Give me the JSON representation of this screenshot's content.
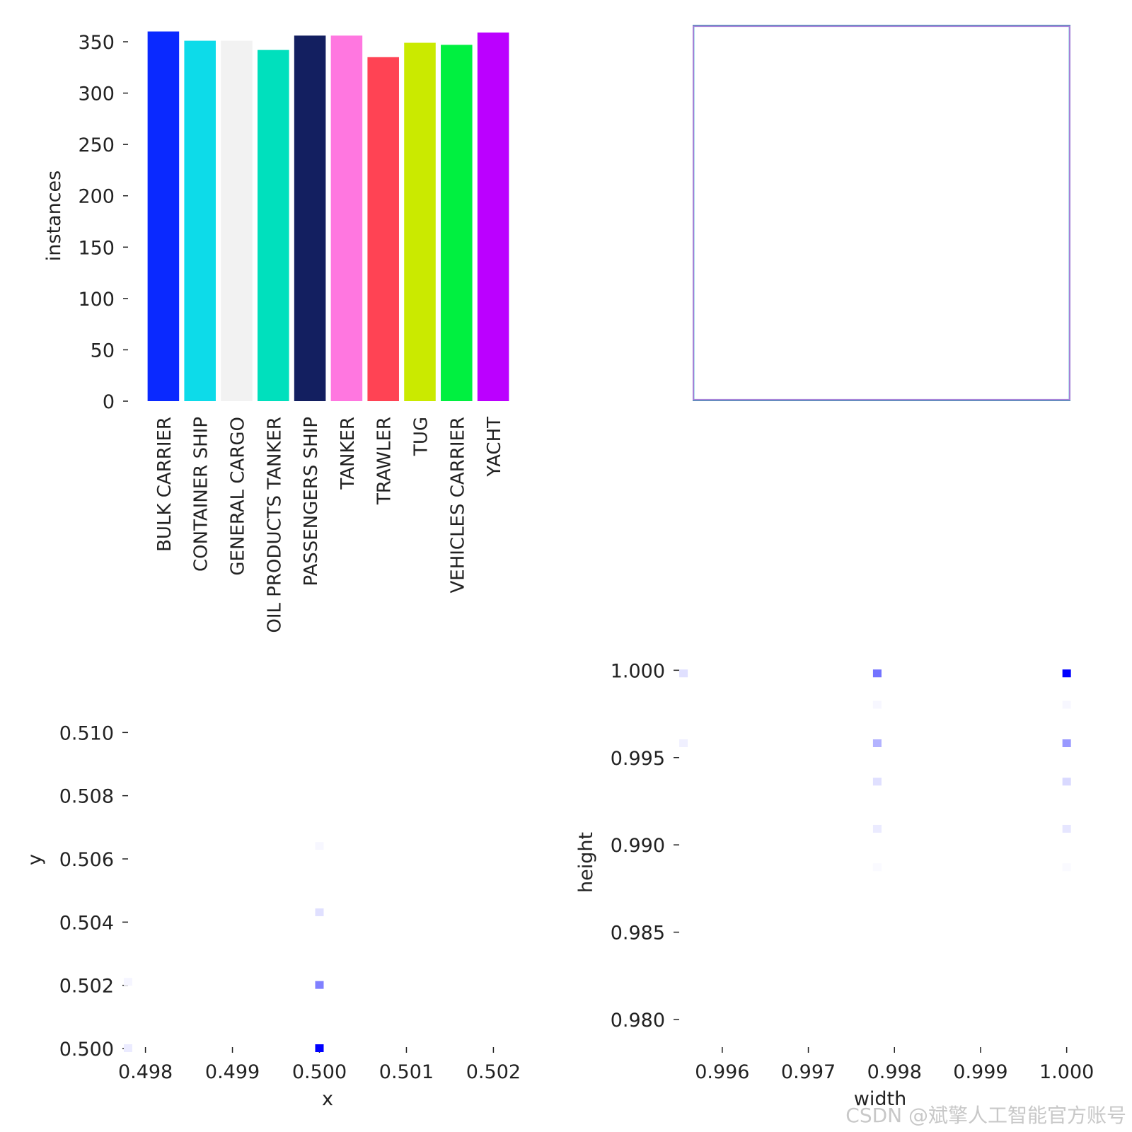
{
  "watermark": "CSDN @斌擎人工智能官方账号",
  "chart_data": [
    {
      "type": "bar",
      "ylabel": "instances",
      "ylim": [
        0,
        370
      ],
      "yticks": [
        "0",
        "50",
        "100",
        "150",
        "200",
        "250",
        "300",
        "350"
      ],
      "categories": [
        "BULK CARRIER",
        "CONTAINER SHIP",
        "GENERAL CARGO",
        "OIL PRODUCTS TANKER",
        "PASSENGERS SHIP",
        "TANKER",
        "TRAWLER",
        "TUG",
        "VEHICLES CARRIER",
        "YACHT"
      ],
      "values": [
        360,
        351,
        351,
        342,
        356,
        356,
        335,
        349,
        347,
        359
      ],
      "colors": [
        "#0a29ff",
        "#0ddbe9",
        "#f2f2f2",
        "#00e0bd",
        "#131f60",
        "#ff77e0",
        "#ff4354",
        "#caea00",
        "#00f040",
        "#bb00ff"
      ]
    },
    {
      "type": "line",
      "description_axes": "none",
      "boxes": [
        {
          "w": 1.0,
          "h": 1.0,
          "color": "#1a7fa0"
        },
        {
          "w": 0.9978,
          "h": 0.996,
          "color": "#6fc0d8"
        },
        {
          "w": 1.0,
          "h": 0.996,
          "color": "#b078d8"
        }
      ]
    },
    {
      "type": "heatmap",
      "xlabel": "x",
      "ylabel": "y",
      "xlim": [
        0.4978,
        0.5022
      ],
      "ylim": [
        0.5,
        0.512
      ],
      "xticks": [
        "0.498",
        "0.499",
        "0.500",
        "0.501",
        "0.502"
      ],
      "yticks": [
        "0.500",
        "0.502",
        "0.504",
        "0.506",
        "0.508",
        "0.510"
      ],
      "cells": [
        {
          "x": 0.5,
          "y": 0.5,
          "intensity": 1.0
        },
        {
          "x": 0.5,
          "y": 0.502,
          "intensity": 0.5
        },
        {
          "x": 0.5,
          "y": 0.5043,
          "intensity": 0.12
        },
        {
          "x": 0.5,
          "y": 0.5064,
          "intensity": 0.03
        },
        {
          "x": 0.4978,
          "y": 0.5,
          "intensity": 0.08
        },
        {
          "x": 0.4978,
          "y": 0.5021,
          "intensity": 0.04
        }
      ]
    },
    {
      "type": "heatmap",
      "xlabel": "width",
      "ylabel": "height",
      "xlim": [
        0.9955,
        1.0002
      ],
      "ylim": [
        0.9785,
        1.0005
      ],
      "xticks": [
        "0.996",
        "0.997",
        "0.998",
        "0.999",
        "1.000"
      ],
      "yticks": [
        "0.980",
        "0.985",
        "0.990",
        "0.995",
        "1.000"
      ],
      "cells": [
        {
          "x": 1.0,
          "y": 0.9998,
          "intensity": 1.0
        },
        {
          "x": 0.9978,
          "y": 0.9998,
          "intensity": 0.55
        },
        {
          "x": 0.99555,
          "y": 0.9998,
          "intensity": 0.12
        },
        {
          "x": 1.0,
          "y": 0.9958,
          "intensity": 0.4
        },
        {
          "x": 0.9978,
          "y": 0.9958,
          "intensity": 0.3
        },
        {
          "x": 0.99555,
          "y": 0.9958,
          "intensity": 0.06
        },
        {
          "x": 1.0,
          "y": 0.9936,
          "intensity": 0.15
        },
        {
          "x": 0.9978,
          "y": 0.9936,
          "intensity": 0.12
        },
        {
          "x": 1.0,
          "y": 0.9909,
          "intensity": 0.1
        },
        {
          "x": 0.9978,
          "y": 0.9909,
          "intensity": 0.08
        },
        {
          "x": 1.0,
          "y": 0.998,
          "intensity": 0.03
        },
        {
          "x": 0.9978,
          "y": 0.998,
          "intensity": 0.03
        },
        {
          "x": 1.0,
          "y": 0.9887,
          "intensity": 0.02
        },
        {
          "x": 0.9978,
          "y": 0.9887,
          "intensity": 0.02
        }
      ]
    }
  ]
}
